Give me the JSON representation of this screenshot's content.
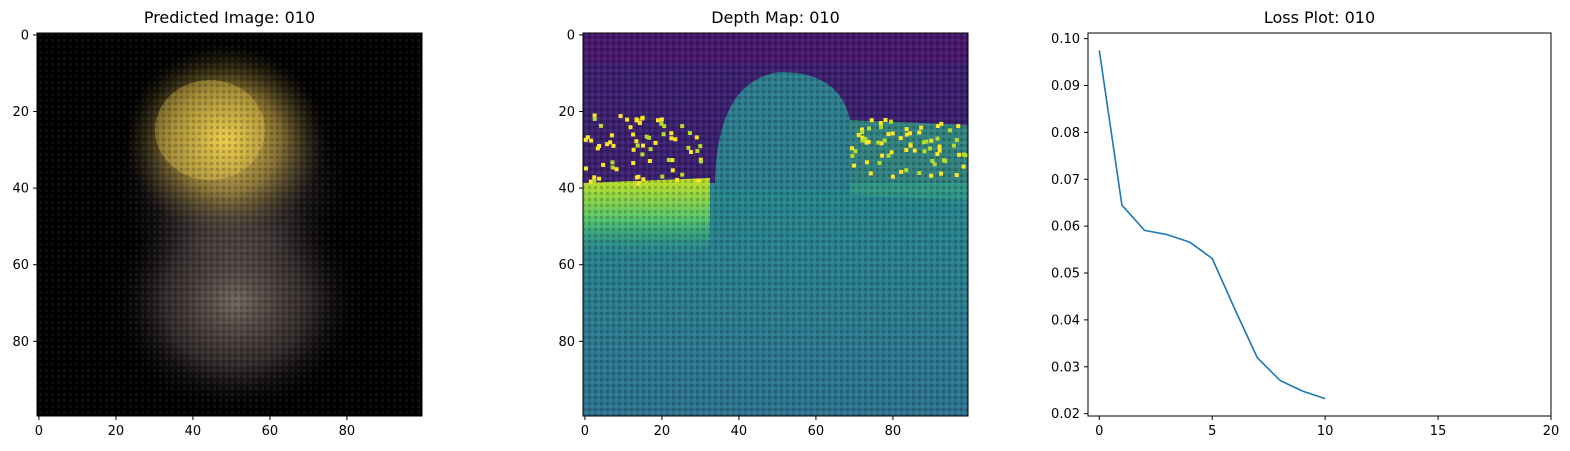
{
  "chart_data": [
    {
      "type": "image",
      "title": "Predicted Image: 010",
      "xticks": [
        0,
        20,
        40,
        60,
        80
      ],
      "yticks": [
        0,
        20,
        40,
        60,
        80
      ],
      "xlim": [
        -0.5,
        99.5
      ],
      "ylim": [
        99.5,
        -0.5
      ]
    },
    {
      "type": "heatmap",
      "title": "Depth Map: 010",
      "colormap": "viridis",
      "xticks": [
        0,
        20,
        40,
        60,
        80
      ],
      "yticks": [
        0,
        20,
        40,
        60,
        80
      ],
      "xlim": [
        -0.5,
        99.5
      ],
      "ylim": [
        99.5,
        -0.5
      ]
    },
    {
      "type": "line",
      "title": "Loss Plot: 010",
      "series": [
        {
          "color": "#1f77b4",
          "x": [
            0,
            1,
            2,
            3,
            4,
            5,
            6,
            7,
            8,
            9,
            10
          ],
          "y": [
            0.0975,
            0.0645,
            0.0591,
            0.0582,
            0.0566,
            0.0531,
            0.0423,
            0.0319,
            0.0271,
            0.0248,
            0.0232
          ]
        }
      ],
      "xticks": [
        0,
        5,
        10,
        15,
        20
      ],
      "yticks": [
        0.02,
        0.03,
        0.04,
        0.05,
        0.06,
        0.07,
        0.08,
        0.09,
        0.1
      ],
      "ytick_labels": [
        "0.02",
        "0.03",
        "0.04",
        "0.05",
        "0.06",
        "0.07",
        "0.08",
        "0.09",
        "0.10"
      ],
      "xlim": [
        -0.5,
        20
      ],
      "ylim": [
        0.0195,
        0.1012
      ],
      "grid": false
    }
  ]
}
